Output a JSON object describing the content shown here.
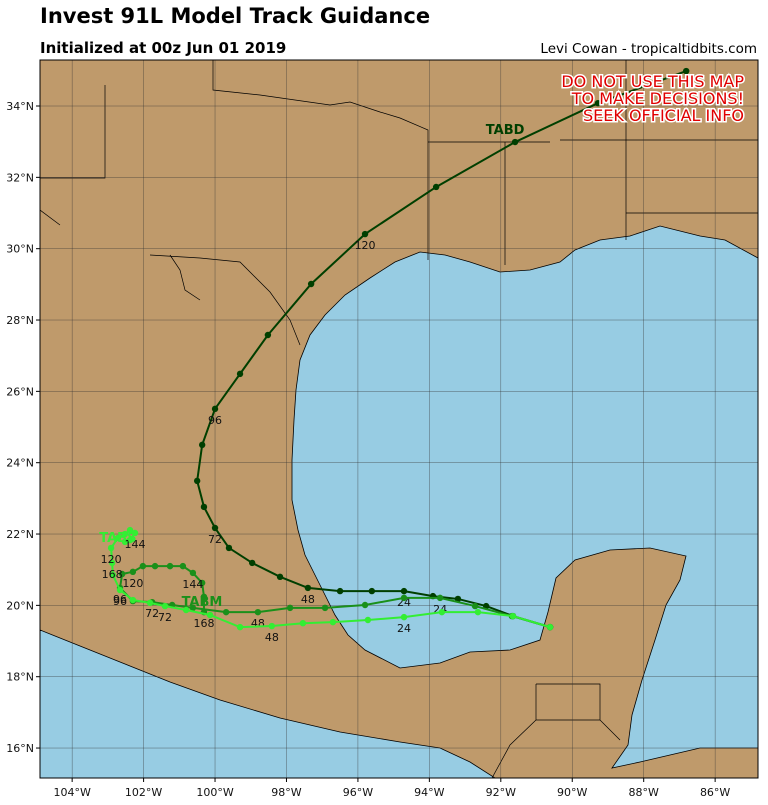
{
  "map": {
    "title": "Invest 91L Model Track Guidance",
    "subtitle": "Initialized at 00z Jun 01 2019",
    "credit": "Levi Cowan - tropicaltidbits.com",
    "warning": [
      "DO NOT USE THIS MAP",
      "TO MAKE DECISIONS!",
      "SEEK OFFICIAL INFO"
    ],
    "xlim": [
      -104.9,
      -84.8
    ],
    "ylim": [
      15.16,
      35.29
    ],
    "xticks": [
      {
        "value": -104,
        "label": "104°W"
      },
      {
        "value": -102,
        "label": "102°W"
      },
      {
        "value": -100,
        "label": "100°W"
      },
      {
        "value": -98,
        "label": "98°W"
      },
      {
        "value": -96,
        "label": "96°W"
      },
      {
        "value": -94,
        "label": "94°W"
      },
      {
        "value": -92,
        "label": "92°W"
      },
      {
        "value": -90,
        "label": "90°W"
      },
      {
        "value": -88,
        "label": "88°W"
      },
      {
        "value": -86,
        "label": "86°W"
      }
    ],
    "yticks": [
      {
        "value": 16,
        "label": "16°N"
      },
      {
        "value": 18,
        "label": "18°N"
      },
      {
        "value": 20,
        "label": "20°N"
      },
      {
        "value": 22,
        "label": "22°N"
      },
      {
        "value": 24,
        "label": "24°N"
      },
      {
        "value": 26,
        "label": "26°N"
      },
      {
        "value": 28,
        "label": "28°N"
      },
      {
        "value": 30,
        "label": "30°N"
      },
      {
        "value": 32,
        "label": "32°N"
      },
      {
        "value": 34,
        "label": "34°N"
      }
    ],
    "tracks": [
      {
        "name": "TABD",
        "color": "#003f00",
        "lon": [
          -90.62,
          -91.66,
          -92.41,
          -93.2,
          -93.9,
          -94.71,
          -95.61,
          -96.5,
          -97.4,
          -98.18,
          -98.96,
          -99.61,
          -100.0,
          -100.31,
          -100.5,
          -100.36,
          -100.0,
          -99.3,
          -98.52,
          -97.31,
          -95.8,
          -93.81,
          -91.6,
          -89.28,
          -86.81
        ],
        "lat": [
          19.39,
          19.7,
          19.98,
          20.18,
          20.26,
          20.4,
          20.4,
          20.4,
          20.49,
          20.8,
          21.19,
          21.61,
          22.17,
          22.76,
          23.49,
          24.5,
          25.51,
          26.49,
          27.58,
          29.01,
          30.41,
          31.73,
          32.99,
          34.08,
          34.98
        ],
        "hour_labels": [
          "24",
          "48",
          "72",
          "96",
          "120"
        ]
      },
      {
        "name": "TABM",
        "color": "#1a901a",
        "lon": [
          -90.62,
          -91.69,
          -92.72,
          -93.7,
          -94.71,
          -95.8,
          -96.92,
          -97.9,
          -98.8,
          -99.69,
          -100.62,
          -101.2,
          -101.76,
          -102.3,
          -102.66,
          -102.6,
          -102.3,
          -102.02,
          -101.68,
          -101.26,
          -100.9,
          -100.62,
          -100.36,
          -100.31,
          -100.31
        ],
        "lat": [
          19.39,
          19.7,
          19.98,
          20.21,
          20.21,
          20.01,
          19.93,
          19.93,
          19.81,
          19.81,
          19.93,
          20.01,
          20.09,
          20.12,
          20.49,
          20.88,
          20.94,
          21.1,
          21.1,
          21.1,
          21.1,
          20.91,
          20.63,
          20.24,
          19.81
        ],
        "hour_labels": [
          "24",
          "48",
          "72",
          "96",
          "120",
          "144",
          "168"
        ]
      },
      {
        "name": "TABS",
        "color": "#33ee33",
        "lon": [
          -90.62,
          -91.66,
          -92.64,
          -93.65,
          -94.71,
          -95.72,
          -96.7,
          -97.54,
          -98.41,
          -99.3,
          -100.14,
          -100.81,
          -101.4,
          -101.82,
          -102.3,
          -102.66,
          -102.86,
          -102.88,
          -102.91,
          -102.72,
          -102.52,
          -102.38,
          -102.24,
          -102.38,
          -102.52
        ],
        "lat": [
          19.39,
          19.7,
          19.81,
          19.81,
          19.67,
          19.59,
          19.53,
          19.5,
          19.42,
          19.39,
          19.73,
          19.87,
          19.98,
          20.07,
          20.15,
          20.43,
          20.85,
          21.19,
          21.61,
          21.89,
          22.0,
          22.11,
          22.03,
          21.83,
          21.78
        ],
        "hour_labels": [
          "24",
          "48",
          "72",
          "96",
          "120",
          "144",
          "168"
        ]
      }
    ]
  }
}
